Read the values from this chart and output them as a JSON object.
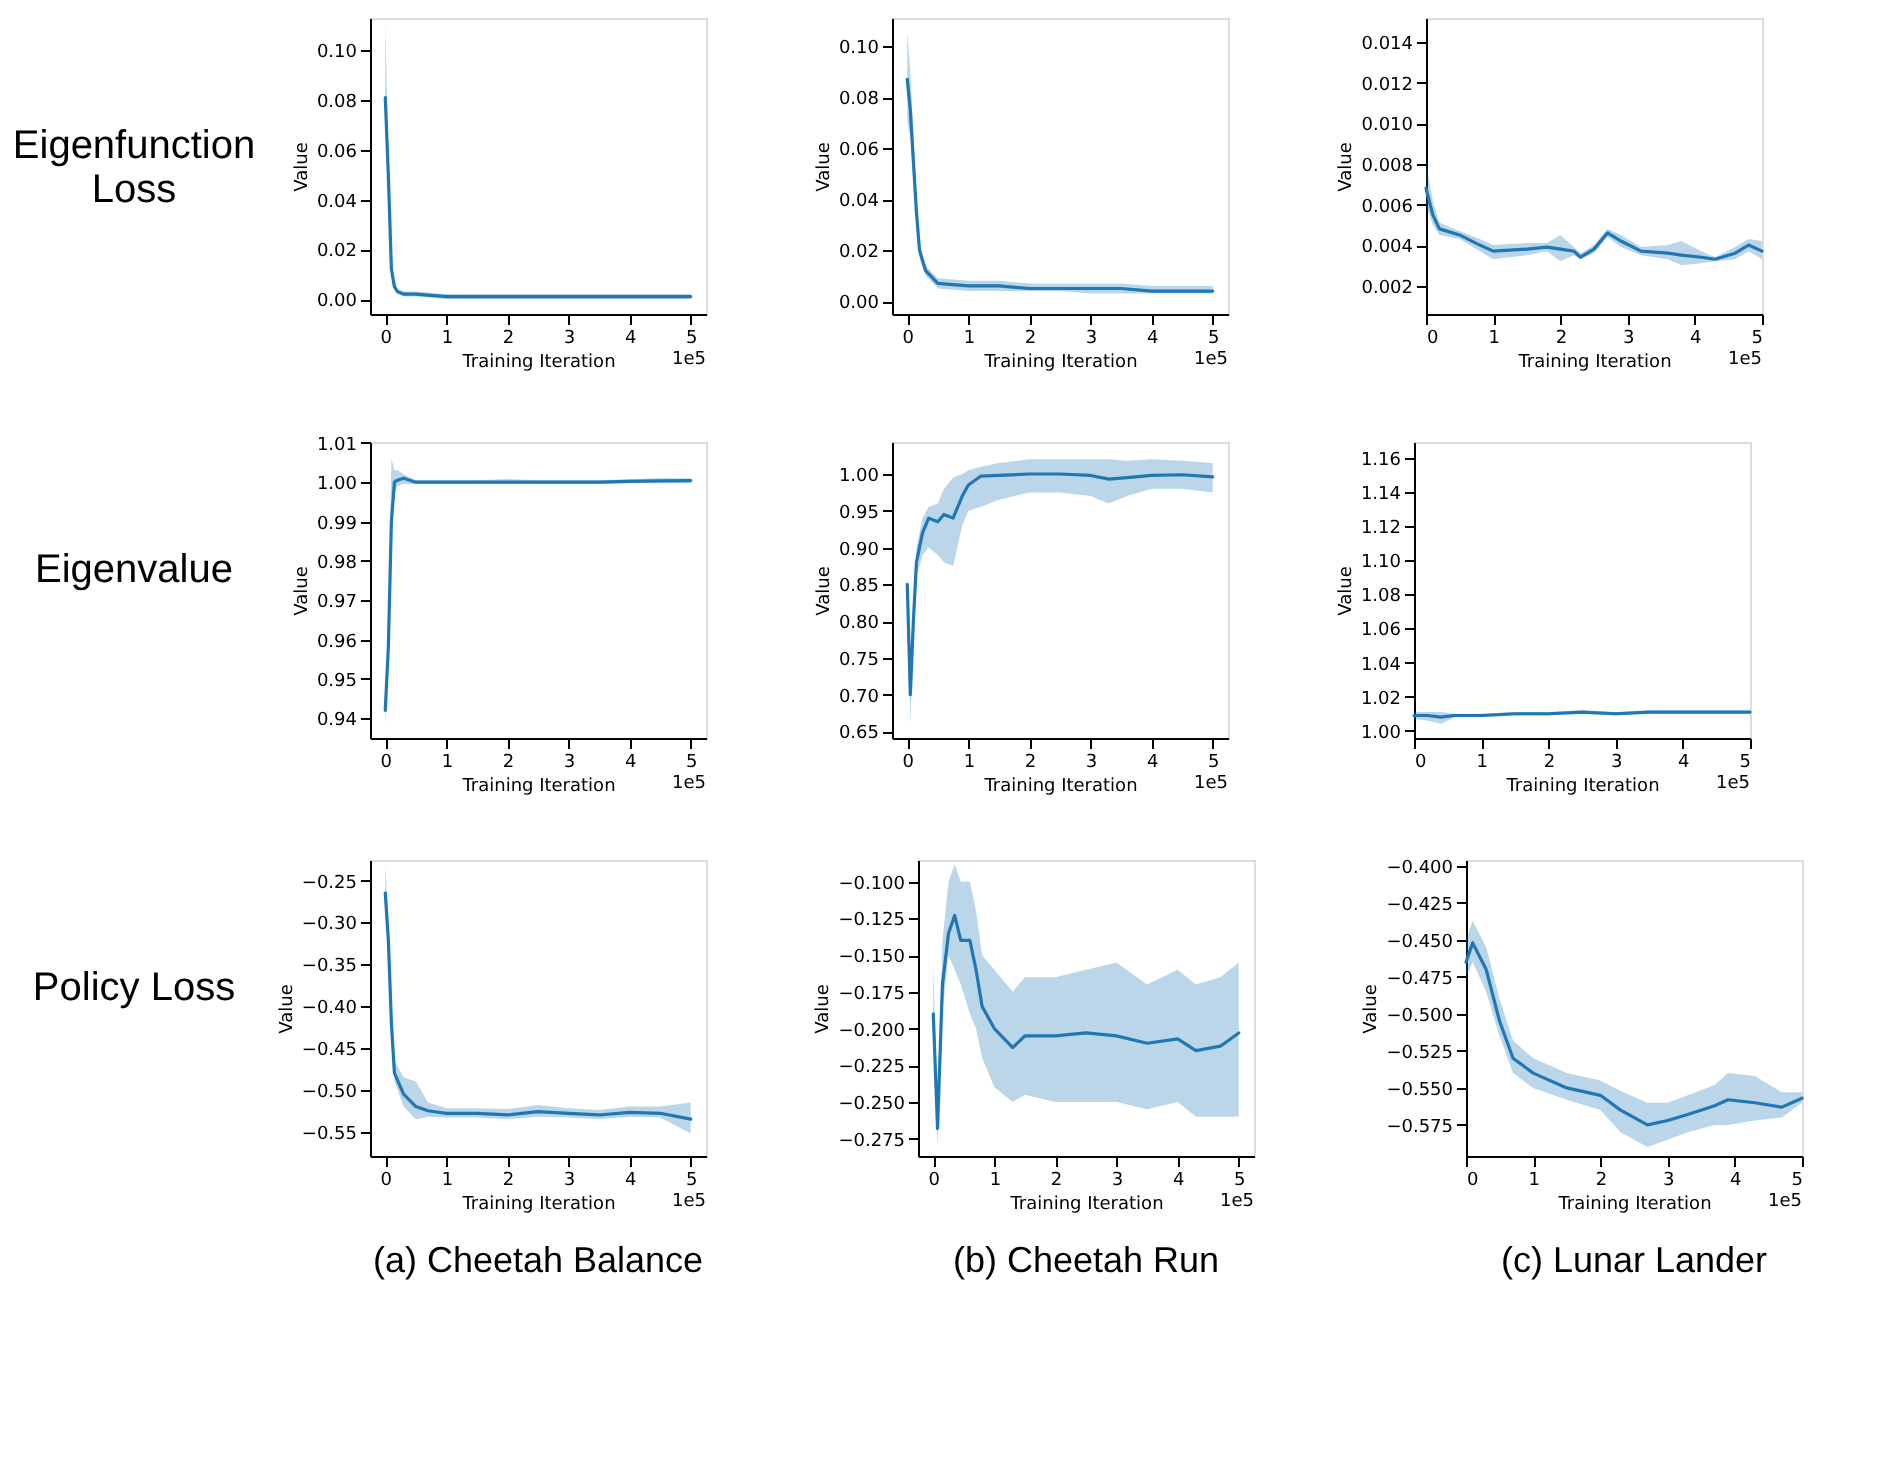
{
  "chart_data": [
    {
      "type": "line",
      "xlabel": "Training Iteration",
      "ylabel": "Value",
      "annotations": [
        "1e5",
        "Eigenfunction\nLoss"
      ],
      "grid": false,
      "line_style": "solid",
      "xlim": [
        -0.25,
        5.25
      ],
      "xticks": [
        0,
        1,
        2,
        3,
        4,
        5
      ],
      "ylim": [
        -0.006,
        0.113
      ],
      "yticks": [
        {
          "value": 0,
          "label": "0.00"
        },
        {
          "value": 0.02,
          "label": "0.02"
        },
        {
          "value": 0.04,
          "label": "0.04"
        },
        {
          "value": 0.06,
          "label": "0.06"
        },
        {
          "value": 0.08,
          "label": "0.08"
        },
        {
          "value": 0.1,
          "label": "0.10"
        }
      ],
      "series": [
        {
          "color": "#1f77b4",
          "x": [
            0,
            0.05,
            0.1,
            0.15,
            0.2,
            0.3,
            0.5,
            1,
            1.5,
            2,
            2.5,
            3,
            3.5,
            4,
            4.5,
            5
          ],
          "values": [
            0.081,
            0.05,
            0.012,
            0.005,
            0.003,
            0.002,
            0.002,
            0.001,
            0.001,
            0.001,
            0.001,
            0.001,
            0.001,
            0.001,
            0.001,
            0.001
          ],
          "lower": [
            0.07,
            0.04,
            0.009,
            0.004,
            0.002,
            0.001,
            0.001,
            0,
            0,
            0,
            0,
            0,
            0,
            0,
            0,
            0
          ],
          "upper": [
            0.111,
            0.06,
            0.015,
            0.006,
            0.004,
            0.003,
            0.003,
            0.002,
            0.002,
            0.002,
            0.002,
            0.002,
            0.002,
            0.002,
            0.002,
            0.002
          ]
        }
      ]
    },
    {
      "type": "line",
      "xlabel": "Training Iteration",
      "ylabel": "Value",
      "annotations": [
        "1e5"
      ],
      "grid": false,
      "line_style": "solid",
      "xlim": [
        -0.25,
        5.25
      ],
      "xticks": [
        0,
        1,
        2,
        3,
        4,
        5
      ],
      "ylim": [
        -0.005,
        0.111
      ],
      "yticks": [
        {
          "value": 0,
          "label": "0.00"
        },
        {
          "value": 0.02,
          "label": "0.02"
        },
        {
          "value": 0.04,
          "label": "0.04"
        },
        {
          "value": 0.06,
          "label": "0.06"
        },
        {
          "value": 0.08,
          "label": "0.08"
        },
        {
          "value": 0.1,
          "label": "0.10"
        }
      ],
      "series": [
        {
          "color": "#1f77b4",
          "x": [
            0,
            0.05,
            0.1,
            0.15,
            0.2,
            0.3,
            0.5,
            1,
            1.5,
            2,
            2.5,
            3,
            3.5,
            4,
            4.5,
            5
          ],
          "values": [
            0.087,
            0.075,
            0.055,
            0.035,
            0.02,
            0.012,
            0.007,
            0.006,
            0.006,
            0.005,
            0.005,
            0.005,
            0.005,
            0.004,
            0.004,
            0.004
          ],
          "lower": [
            0.07,
            0.065,
            0.045,
            0.03,
            0.017,
            0.01,
            0.005,
            0.004,
            0.004,
            0.004,
            0.004,
            0.003,
            0.003,
            0.003,
            0.003,
            0.003
          ],
          "upper": [
            0.106,
            0.09,
            0.065,
            0.04,
            0.023,
            0.014,
            0.009,
            0.008,
            0.008,
            0.007,
            0.007,
            0.007,
            0.007,
            0.006,
            0.006,
            0.006
          ]
        }
      ]
    },
    {
      "type": "line",
      "xlabel": "Training Iteration",
      "ylabel": "Value",
      "annotations": [
        "1e5"
      ],
      "grid": false,
      "line_style": "solid",
      "xlim": [
        0,
        5
      ],
      "xticks": [
        0,
        1,
        2,
        3,
        4,
        5
      ],
      "ylim": [
        0.0006,
        0.0152
      ],
      "yticks": [
        {
          "value": 0.002,
          "label": "0.002"
        },
        {
          "value": 0.004,
          "label": "0.004"
        },
        {
          "value": 0.006,
          "label": "0.006"
        },
        {
          "value": 0.008,
          "label": "0.008"
        },
        {
          "value": 0.01,
          "label": "0.010"
        },
        {
          "value": 0.012,
          "label": "0.012"
        },
        {
          "value": 0.014,
          "label": "0.014"
        }
      ],
      "series": [
        {
          "color": "#1f77b4",
          "x": [
            0,
            0.1,
            0.2,
            0.5,
            0.8,
            1,
            1.5,
            1.8,
            2,
            2.2,
            2.3,
            2.5,
            2.7,
            2.9,
            3.2,
            3.6,
            3.8,
            4.1,
            4.3,
            4.6,
            4.8,
            5
          ],
          "values": [
            0.0068,
            0.0055,
            0.0048,
            0.0045,
            0.004,
            0.0037,
            0.0038,
            0.0039,
            0.0038,
            0.0037,
            0.0034,
            0.0038,
            0.0046,
            0.0042,
            0.0037,
            0.0036,
            0.0035,
            0.0034,
            0.0033,
            0.0036,
            0.004,
            0.0037
          ],
          "lower": [
            0.006,
            0.005,
            0.0045,
            0.0043,
            0.0037,
            0.0033,
            0.0035,
            0.0037,
            0.0032,
            0.0035,
            0.0033,
            0.0036,
            0.0044,
            0.0039,
            0.0035,
            0.0033,
            0.003,
            0.0031,
            0.0032,
            0.0033,
            0.0037,
            0.0033
          ],
          "upper": [
            0.0081,
            0.0062,
            0.0051,
            0.0047,
            0.0043,
            0.004,
            0.0041,
            0.0041,
            0.0045,
            0.0039,
            0.0036,
            0.004,
            0.0048,
            0.0045,
            0.0039,
            0.004,
            0.0042,
            0.0037,
            0.0034,
            0.0039,
            0.0043,
            0.0042
          ]
        }
      ]
    },
    {
      "type": "line",
      "xlabel": "Training Iteration",
      "ylabel": "Value",
      "annotations": [
        "1e5",
        "Eigenvalue"
      ],
      "grid": false,
      "line_style": "solid",
      "xlim": [
        -0.25,
        5.25
      ],
      "xticks": [
        0,
        1,
        2,
        3,
        4,
        5
      ],
      "ylim": [
        0.935,
        1.0102
      ],
      "yticks": [
        {
          "value": 0.94,
          "label": "0.94"
        },
        {
          "value": 0.95,
          "label": "0.95"
        },
        {
          "value": 0.96,
          "label": "0.96"
        },
        {
          "value": 0.97,
          "label": "0.97"
        },
        {
          "value": 0.98,
          "label": "0.98"
        },
        {
          "value": 0.99,
          "label": "0.99"
        },
        {
          "value": 1.0,
          "label": "1.00"
        },
        {
          "value": 1.01,
          "label": "1.01"
        }
      ],
      "series": [
        {
          "color": "#1f77b4",
          "x": [
            0,
            0.05,
            0.1,
            0.15,
            0.2,
            0.3,
            0.5,
            1,
            1.5,
            2,
            2.5,
            3,
            3.5,
            4,
            4.5,
            5
          ],
          "values": [
            0.942,
            0.958,
            0.99,
            1.0,
            1.0005,
            1.001,
            1.0,
            1.0,
            1.0,
            1.0,
            1.0,
            1.0,
            1.0,
            1.0002,
            1.0003,
            1.0004
          ],
          "lower": [
            0.938,
            0.955,
            0.985,
            0.997,
            0.999,
            0.9995,
            0.9995,
            0.9995,
            0.9995,
            0.9995,
            0.9995,
            0.9995,
            0.9995,
            0.9997,
            0.9997,
            0.9997
          ],
          "upper": [
            0.945,
            0.962,
            1.006,
            1.003,
            1.003,
            1.002,
            1.0005,
            1.0005,
            1.0005,
            1.0008,
            1.0005,
            1.0005,
            1.0005,
            1.0008,
            1.001,
            1.001
          ]
        }
      ]
    },
    {
      "type": "line",
      "xlabel": "Training Iteration",
      "ylabel": "Value",
      "annotations": [
        "1e5"
      ],
      "grid": false,
      "line_style": "solid",
      "xlim": [
        -0.25,
        5.25
      ],
      "xticks": [
        0,
        1,
        2,
        3,
        4,
        5
      ],
      "ylim": [
        0.641,
        1.0435
      ],
      "yticks": [
        {
          "value": 0.65,
          "label": "0.65"
        },
        {
          "value": 0.7,
          "label": "0.70"
        },
        {
          "value": 0.75,
          "label": "0.75"
        },
        {
          "value": 0.8,
          "label": "0.80"
        },
        {
          "value": 0.85,
          "label": "0.85"
        },
        {
          "value": 0.9,
          "label": "0.90"
        },
        {
          "value": 0.95,
          "label": "0.95"
        },
        {
          "value": 1.0,
          "label": "1.00"
        }
      ],
      "series": [
        {
          "color": "#1f77b4",
          "x": [
            0,
            0.05,
            0.1,
            0.15,
            0.25,
            0.35,
            0.5,
            0.6,
            0.75,
            0.9,
            1.0,
            1.2,
            1.5,
            2,
            2.5,
            3,
            3.3,
            3.6,
            4,
            4.5,
            5
          ],
          "values": [
            0.85,
            0.7,
            0.8,
            0.88,
            0.92,
            0.94,
            0.935,
            0.945,
            0.94,
            0.97,
            0.985,
            0.997,
            0.998,
            1.0,
            1.0,
            0.998,
            0.993,
            0.995,
            0.998,
            0.999,
            0.996
          ],
          "lower": [
            0.84,
            0.66,
            0.78,
            0.86,
            0.89,
            0.9,
            0.89,
            0.88,
            0.875,
            0.93,
            0.95,
            0.955,
            0.965,
            0.975,
            0.975,
            0.97,
            0.96,
            0.97,
            0.98,
            0.98,
            0.975
          ],
          "upper": [
            0.855,
            0.71,
            0.82,
            0.9,
            0.94,
            0.955,
            0.96,
            0.98,
            0.995,
            1.0,
            1.005,
            1.01,
            1.015,
            1.02,
            1.02,
            1.02,
            1.02,
            1.018,
            1.02,
            1.018,
            1.015
          ]
        }
      ]
    },
    {
      "type": "line",
      "xlabel": "Training Iteration",
      "ylabel": "Value",
      "annotations": [
        "1e5"
      ],
      "grid": false,
      "line_style": "solid",
      "xlim": [
        0,
        5
      ],
      "xticks": [
        0,
        1,
        2,
        3,
        4,
        5
      ],
      "ylim": [
        0.9958,
        1.1693
      ],
      "yticks": [
        {
          "value": 1.0,
          "label": "1.00"
        },
        {
          "value": 1.02,
          "label": "1.02"
        },
        {
          "value": 1.04,
          "label": "1.04"
        },
        {
          "value": 1.06,
          "label": "1.06"
        },
        {
          "value": 1.08,
          "label": "1.08"
        },
        {
          "value": 1.1,
          "label": "1.10"
        },
        {
          "value": 1.12,
          "label": "1.12"
        },
        {
          "value": 1.14,
          "label": "1.14"
        },
        {
          "value": 1.16,
          "label": "1.16"
        }
      ],
      "series": [
        {
          "color": "#1f77b4",
          "x": [
            0,
            0.2,
            0.4,
            0.6,
            1,
            1.5,
            2,
            2.5,
            3,
            3.5,
            4,
            4.5,
            5
          ],
          "values": [
            1.009,
            1.009,
            1.008,
            1.009,
            1.009,
            1.01,
            1.01,
            1.011,
            1.01,
            1.011,
            1.011,
            1.011,
            1.011
          ],
          "lower": [
            1.007,
            1.006,
            1.004,
            1.008,
            1.008,
            1.009,
            1.009,
            1.01,
            1.009,
            1.01,
            1.01,
            1.01,
            1.01
          ],
          "upper": [
            1.011,
            1.011,
            1.011,
            1.01,
            1.01,
            1.011,
            1.011,
            1.012,
            1.011,
            1.012,
            1.012,
            1.012,
            1.012
          ]
        }
      ]
    },
    {
      "type": "line",
      "xlabel": "Training Iteration",
      "ylabel": "Value",
      "annotations": [
        "1e5",
        "Policy Loss",
        "(a) Cheetah Balance"
      ],
      "grid": false,
      "line_style": "solid",
      "xlim": [
        -0.25,
        5.25
      ],
      "xticks": [
        0,
        1,
        2,
        3,
        4,
        5
      ],
      "ylim": [
        -0.579,
        -0.2255
      ],
      "yticks": [
        {
          "value": -0.55,
          "label": "−0.55"
        },
        {
          "value": -0.5,
          "label": "−0.50"
        },
        {
          "value": -0.45,
          "label": "−0.45"
        },
        {
          "value": -0.4,
          "label": "−0.40"
        },
        {
          "value": -0.35,
          "label": "−0.35"
        },
        {
          "value": -0.3,
          "label": "−0.30"
        },
        {
          "value": -0.25,
          "label": "−0.25"
        }
      ],
      "series": [
        {
          "color": "#1f77b4",
          "x": [
            0,
            0.05,
            0.1,
            0.15,
            0.3,
            0.5,
            0.7,
            1,
            1.5,
            2,
            2.5,
            3,
            3.5,
            4,
            4.5,
            5
          ],
          "values": [
            -0.265,
            -0.32,
            -0.42,
            -0.48,
            -0.505,
            -0.52,
            -0.525,
            -0.528,
            -0.528,
            -0.53,
            -0.526,
            -0.528,
            -0.53,
            -0.527,
            -0.528,
            -0.535
          ],
          "lower": [
            -0.29,
            -0.34,
            -0.44,
            -0.49,
            -0.52,
            -0.535,
            -0.532,
            -0.533,
            -0.533,
            -0.535,
            -0.532,
            -0.533,
            -0.535,
            -0.532,
            -0.533,
            -0.552
          ],
          "upper": [
            -0.23,
            -0.3,
            -0.4,
            -0.465,
            -0.485,
            -0.49,
            -0.515,
            -0.522,
            -0.522,
            -0.523,
            -0.518,
            -0.522,
            -0.524,
            -0.52,
            -0.52,
            -0.515
          ]
        }
      ]
    },
    {
      "type": "line",
      "xlabel": "Training Iteration",
      "ylabel": "Value",
      "annotations": [
        "1e5",
        "(b) Cheetah Run"
      ],
      "grid": false,
      "line_style": "solid",
      "xlim": [
        -0.25,
        5.25
      ],
      "xticks": [
        0,
        1,
        2,
        3,
        4,
        5
      ],
      "ylim": [
        -0.2868,
        -0.0852
      ],
      "yticks": [
        {
          "value": -0.275,
          "label": "−0.275"
        },
        {
          "value": -0.25,
          "label": "−0.250"
        },
        {
          "value": -0.225,
          "label": "−0.225"
        },
        {
          "value": -0.2,
          "label": "−0.200"
        },
        {
          "value": -0.175,
          "label": "−0.175"
        },
        {
          "value": -0.15,
          "label": "−0.150"
        },
        {
          "value": -0.125,
          "label": "−0.125"
        },
        {
          "value": -0.1,
          "label": "−0.100"
        }
      ],
      "series": [
        {
          "color": "#1f77b4",
          "x": [
            0,
            0.07,
            0.15,
            0.25,
            0.35,
            0.45,
            0.6,
            0.7,
            0.8,
            1,
            1.3,
            1.5,
            2,
            2.5,
            3,
            3.5,
            4,
            4.3,
            4.7,
            5
          ],
          "values": [
            -0.19,
            -0.268,
            -0.17,
            -0.135,
            -0.123,
            -0.14,
            -0.14,
            -0.16,
            -0.185,
            -0.2,
            -0.213,
            -0.205,
            -0.205,
            -0.203,
            -0.205,
            -0.21,
            -0.207,
            -0.215,
            -0.212,
            -0.203
          ],
          "lower": [
            -0.2,
            -0.28,
            -0.19,
            -0.15,
            -0.16,
            -0.17,
            -0.19,
            -0.2,
            -0.22,
            -0.24,
            -0.25,
            -0.245,
            -0.25,
            -0.25,
            -0.25,
            -0.255,
            -0.25,
            -0.26,
            -0.26,
            -0.26
          ],
          "upper": [
            -0.155,
            -0.26,
            -0.14,
            -0.1,
            -0.088,
            -0.1,
            -0.1,
            -0.12,
            -0.15,
            -0.16,
            -0.175,
            -0.165,
            -0.165,
            -0.16,
            -0.155,
            -0.17,
            -0.16,
            -0.17,
            -0.165,
            -0.155
          ]
        }
      ]
    },
    {
      "type": "line",
      "xlabel": "Training Iteration",
      "ylabel": "Value",
      "annotations": [
        "1e5",
        "(c) Lunar Lander"
      ],
      "grid": false,
      "line_style": "solid",
      "xlim": [
        0,
        5
      ],
      "xticks": [
        0,
        1,
        2,
        3,
        4,
        5
      ],
      "ylim": [
        -0.596,
        -0.396
      ],
      "yticks": [
        {
          "value": -0.575,
          "label": "−0.575"
        },
        {
          "value": -0.55,
          "label": "−0.550"
        },
        {
          "value": -0.525,
          "label": "−0.525"
        },
        {
          "value": -0.5,
          "label": "−0.500"
        },
        {
          "value": -0.475,
          "label": "−0.475"
        },
        {
          "value": -0.45,
          "label": "−0.450"
        },
        {
          "value": -0.425,
          "label": "−0.425"
        },
        {
          "value": -0.4,
          "label": "−0.400"
        }
      ],
      "series": [
        {
          "color": "#1f77b4",
          "x": [
            0,
            0.1,
            0.3,
            0.5,
            0.7,
            1,
            1.5,
            2,
            2.3,
            2.7,
            3,
            3.3,
            3.7,
            3.9,
            4.3,
            4.7,
            5
          ],
          "values": [
            -0.465,
            -0.452,
            -0.47,
            -0.505,
            -0.53,
            -0.54,
            -0.55,
            -0.555,
            -0.565,
            -0.575,
            -0.572,
            -0.568,
            -0.562,
            -0.558,
            -0.56,
            -0.563,
            -0.557
          ],
          "lower": [
            -0.475,
            -0.465,
            -0.485,
            -0.515,
            -0.54,
            -0.55,
            -0.558,
            -0.565,
            -0.58,
            -0.59,
            -0.585,
            -0.58,
            -0.575,
            -0.575,
            -0.572,
            -0.57,
            -0.56
          ],
          "upper": [
            -0.45,
            -0.437,
            -0.455,
            -0.49,
            -0.518,
            -0.53,
            -0.54,
            -0.545,
            -0.552,
            -0.56,
            -0.56,
            -0.555,
            -0.548,
            -0.54,
            -0.542,
            -0.553,
            -0.553
          ]
        }
      ]
    }
  ]
}
